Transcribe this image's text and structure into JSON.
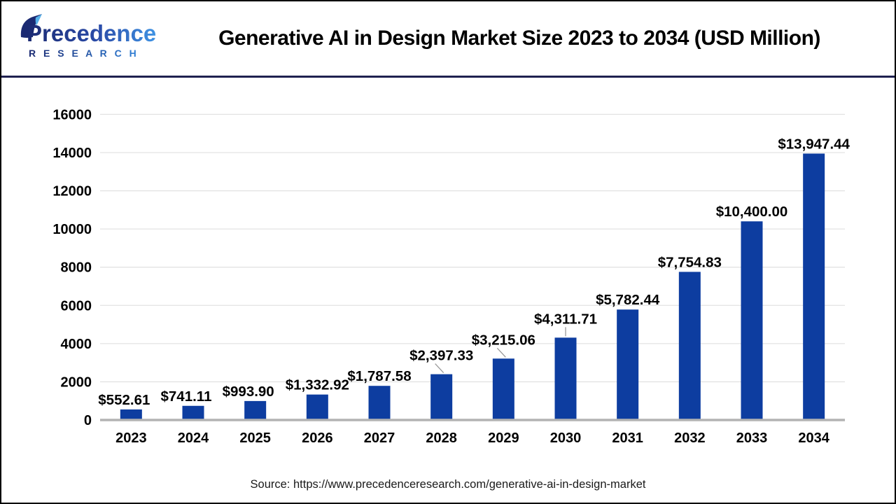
{
  "header": {
    "logo": {
      "brand": "Precedence Research",
      "line1": "Precedence",
      "line2": "R E S E A R C H",
      "gradient_start": "#1b2a72",
      "gradient_end": "#3f93e4",
      "sail_dark": "#1b2a72",
      "sail_light": "#58b2ea"
    },
    "title": "Generative AI in Design Market Size 2023 to 2034 (USD Million)"
  },
  "chart_data": {
    "type": "bar",
    "title": "Generative AI in Design Market Size 2023 to 2034 (USD Million)",
    "unit": "USD Million",
    "categories": [
      "2023",
      "2024",
      "2025",
      "2026",
      "2027",
      "2028",
      "2029",
      "2030",
      "2031",
      "2032",
      "2033",
      "2034"
    ],
    "values": [
      552.61,
      741.11,
      993.9,
      1332.92,
      1787.58,
      2397.33,
      3215.06,
      4311.71,
      5782.44,
      7754.83,
      10400.0,
      13947.44
    ],
    "value_labels": [
      "$552.61",
      "$741.11",
      "$993.90",
      "$1,332.92",
      "$1,787.58",
      "$2,397.33",
      "$3,215.06",
      "$4,311.71",
      "$5,782.44",
      "$7,754.83",
      "$10,400.00",
      "$13,947.44"
    ],
    "ylim": [
      0,
      16000
    ],
    "yticks": [
      0,
      2000,
      4000,
      6000,
      8000,
      10000,
      12000,
      14000,
      16000
    ],
    "grid": true,
    "legend": false,
    "bar_color": "#0d3da0",
    "grid_color": "#e3e3e3",
    "baseline_color": "#b3b3b3",
    "leader_line_color": "#999999",
    "leader_line_years": [
      "2028",
      "2029",
      "2030"
    ]
  },
  "footer": {
    "source": "Source: https://www.precedenceresearch.com/generative-ai-in-design-market"
  }
}
